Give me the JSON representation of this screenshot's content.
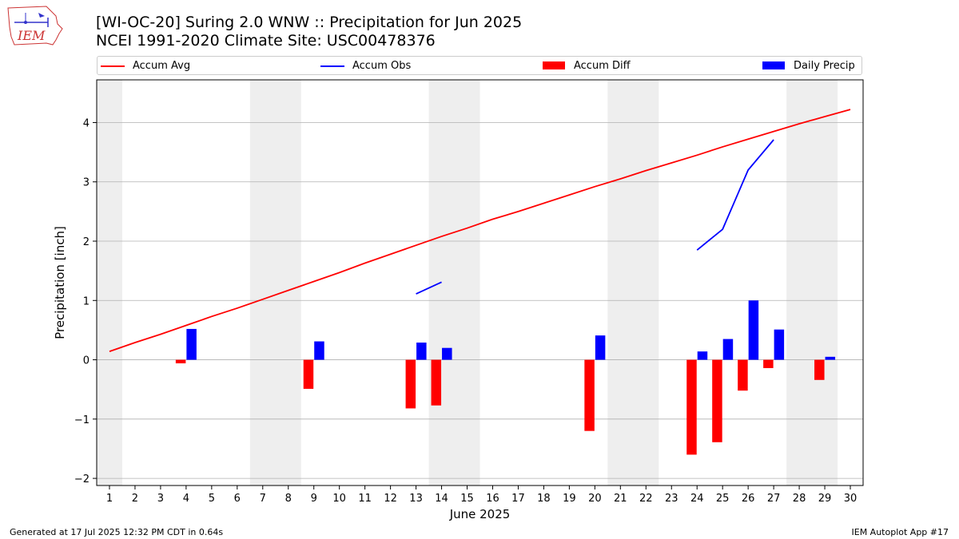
{
  "header": {
    "title_line1": "[WI-OC-20] Suring 2.0 WNW :: Precipitation for Jun 2025",
    "title_line2": "NCEI 1991-2020 Climate Site: USC00478376",
    "logo_text": "IEM"
  },
  "footer": {
    "left": "Generated at 17 Jul 2025 12:32 PM CDT in 0.64s",
    "right": "IEM Autoplot App #17"
  },
  "colors": {
    "accum_avg": "#ff0000",
    "accum_obs": "#0000ff",
    "accum_diff": "#ff0000",
    "daily_precip": "#0000ff",
    "weekend_shade": "#eeeeee"
  },
  "chart_data": {
    "type": "bar",
    "xlabel": "June 2025",
    "ylabel": "Precipitation [inch]",
    "xlim": [
      0.5,
      30.5
    ],
    "ylim": [
      -2.12,
      4.72
    ],
    "yticks": [
      -2,
      -1,
      0,
      1,
      2,
      3,
      4
    ],
    "ytick_labels": [
      "−2",
      "−1",
      "0",
      "1",
      "2",
      "3",
      "4"
    ],
    "xticks": [
      1,
      2,
      3,
      4,
      5,
      6,
      7,
      8,
      9,
      10,
      11,
      12,
      13,
      14,
      15,
      16,
      17,
      18,
      19,
      20,
      21,
      22,
      23,
      24,
      25,
      26,
      27,
      28,
      29,
      30
    ],
    "grid": "horizontal",
    "legend_position": "top",
    "legend": [
      "Accum Avg",
      "Accum Obs",
      "Accum Diff",
      "Daily Precip"
    ],
    "weekend_spans": [
      [
        0.5,
        1.5
      ],
      [
        6.5,
        8.5
      ],
      [
        13.5,
        15.5
      ],
      [
        20.5,
        22.5
      ],
      [
        27.5,
        29.5
      ]
    ],
    "accum_avg": {
      "x": [
        1,
        2,
        3,
        4,
        5,
        6,
        7,
        8,
        9,
        10,
        11,
        12,
        13,
        14,
        15,
        16,
        17,
        18,
        19,
        20,
        21,
        22,
        23,
        24,
        25,
        26,
        27,
        28,
        29,
        30
      ],
      "y": [
        0.14,
        0.29,
        0.43,
        0.58,
        0.73,
        0.87,
        1.02,
        1.17,
        1.32,
        1.47,
        1.63,
        1.78,
        1.93,
        2.08,
        2.22,
        2.37,
        2.5,
        2.64,
        2.78,
        2.92,
        3.05,
        3.19,
        3.32,
        3.45,
        3.59,
        3.72,
        3.85,
        3.98,
        4.1,
        4.22
      ]
    },
    "accum_obs_segments": [
      {
        "x": [
          13,
          14
        ],
        "y": [
          1.11,
          1.31
        ]
      },
      {
        "x": [
          24,
          25,
          26,
          27
        ],
        "y": [
          1.85,
          2.2,
          3.2,
          3.71
        ]
      }
    ],
    "accum_diff": {
      "x": [
        4,
        9,
        13,
        14,
        20,
        24,
        25,
        26,
        27,
        29
      ],
      "values": [
        -0.06,
        -0.49,
        -0.82,
        -0.77,
        -1.2,
        -1.6,
        -1.39,
        -0.52,
        -0.14,
        -0.34
      ]
    },
    "daily_precip": {
      "x": [
        4,
        9,
        13,
        14,
        20,
        24,
        25,
        26,
        27,
        29
      ],
      "values": [
        0.52,
        0.31,
        0.29,
        0.2,
        0.41,
        0.14,
        0.35,
        1.0,
        0.51,
        0.05
      ]
    }
  }
}
